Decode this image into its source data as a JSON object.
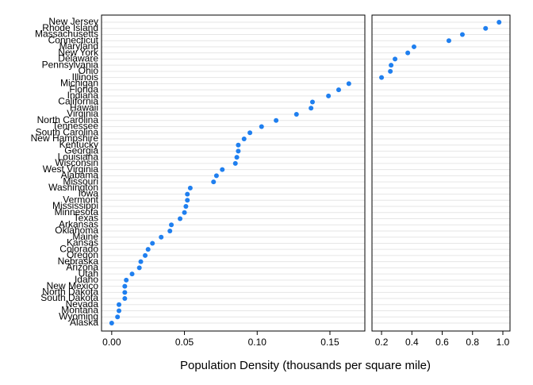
{
  "chart_data": {
    "type": "dot",
    "xlabel": "Population Density (thousands per square mile)",
    "color": "#1f7fef",
    "grid": true,
    "categories": [
      "New Jersey",
      "Rhode Island",
      "Massachusetts",
      "Connecticut",
      "Maryland",
      "New York",
      "Delaware",
      "Pennsylvania",
      "Ohio",
      "Illinois",
      "Michigan",
      "Florida",
      "Indiana",
      "California",
      "Hawaii",
      "Virginia",
      "North Carolina",
      "Tennessee",
      "South Carolina",
      "New Hampshire",
      "Kentucky",
      "Georgia",
      "Louisiana",
      "Wisconsin",
      "West Virginia",
      "Alabama",
      "Missouri",
      "Washington",
      "Iowa",
      "Vermont",
      "Mississippi",
      "Minnesota",
      "Texas",
      "Arkansas",
      "Oklahoma",
      "Maine",
      "Kansas",
      "Colorado",
      "Oregon",
      "Nebraska",
      "Arizona",
      "Utah",
      "Idaho",
      "New Mexico",
      "North Dakota",
      "South Dakota",
      "Nevada",
      "Montana",
      "Wyoming",
      "Alaska"
    ],
    "panels": [
      {
        "xlim": [
          -0.007,
          0.174
        ],
        "xticks": [
          {
            "value": 0,
            "label": "0.00"
          },
          0.05,
          {
            "value": 0.1,
            "label": "0.10"
          },
          0.15
        ],
        "values": [
          null,
          null,
          null,
          null,
          null,
          null,
          null,
          null,
          null,
          null,
          0.163,
          0.156,
          0.149,
          0.138,
          0.137,
          0.127,
          0.113,
          0.103,
          0.095,
          0.091,
          0.087,
          0.087,
          0.086,
          0.085,
          0.076,
          0.072,
          0.07,
          0.054,
          0.052,
          0.052,
          0.051,
          0.05,
          0.047,
          0.041,
          0.04,
          0.034,
          0.028,
          0.025,
          0.023,
          0.02,
          0.019,
          0.014,
          0.01,
          0.009,
          0.009,
          0.009,
          0.005,
          0.005,
          0.004,
          0.0
        ]
      },
      {
        "xlim": [
          0.137,
          1.047
        ],
        "xticks": [
          0.2,
          0.4,
          0.6,
          0.8,
          {
            "value": 1,
            "label": "1.0"
          }
        ],
        "values": [
          0.975,
          0.886,
          0.733,
          0.644,
          0.414,
          0.373,
          0.289,
          0.263,
          0.258,
          0.2,
          null,
          null,
          null,
          null,
          null,
          null,
          null,
          null,
          null,
          null,
          null,
          null,
          null,
          null,
          null,
          null,
          null,
          null,
          null,
          null,
          null,
          null,
          null,
          null,
          null,
          null,
          null,
          null,
          null,
          null,
          null,
          null,
          null,
          null,
          null,
          null,
          null,
          null,
          null,
          null
        ]
      }
    ]
  }
}
